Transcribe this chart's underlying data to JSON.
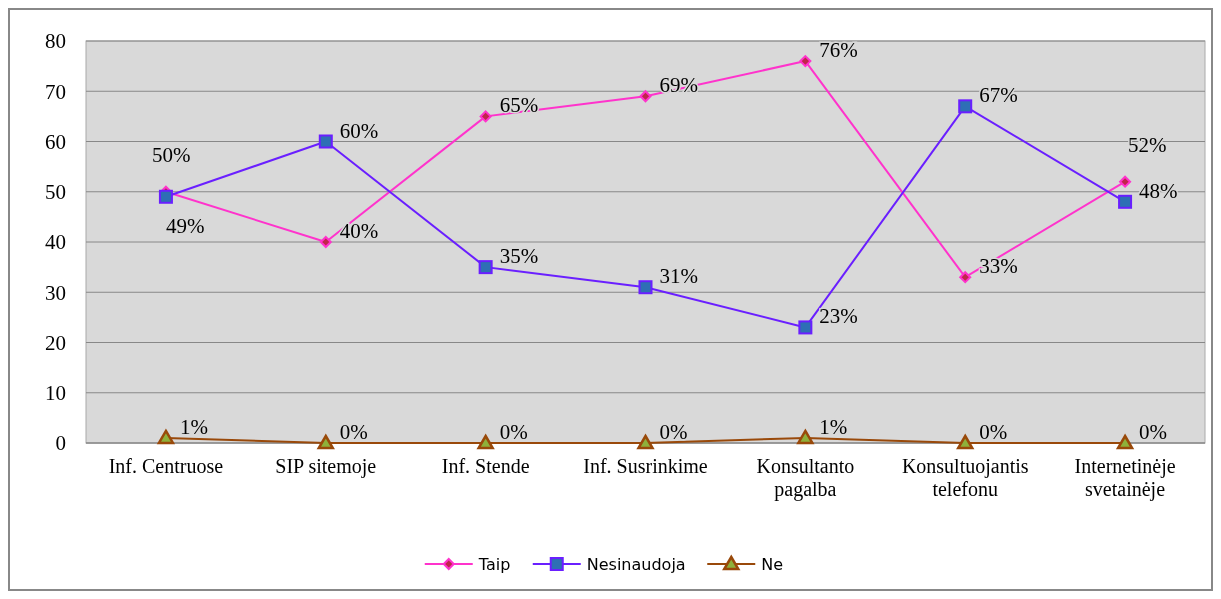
{
  "chart_data": {
    "type": "line",
    "categories": [
      "Inf. Centruose",
      "SIP sitemoje",
      "Inf. Stende",
      "Inf. Susrinkime",
      "Konsultanto pagalba",
      "Konsultuojantis telefonu",
      "Internetinėje svetainėje"
    ],
    "series": [
      {
        "name": "Taip",
        "color": "#ff33cc",
        "marker": "diamond",
        "values": [
          50,
          40,
          65,
          69,
          76,
          33,
          52
        ],
        "value_labels": [
          "50%",
          "40%",
          "65%",
          "69%",
          "76%",
          "33%",
          "52%"
        ]
      },
      {
        "name": "Nesinaudoja",
        "color": "#6a1fff",
        "marker": "square",
        "values": [
          49,
          60,
          35,
          31,
          23,
          67,
          48
        ],
        "value_labels": [
          "49%",
          "60%",
          "35%",
          "31%",
          "23%",
          "67%",
          "48%"
        ]
      },
      {
        "name": "Ne",
        "color": "#99490a",
        "marker": "triangle",
        "values": [
          1,
          0,
          0,
          0,
          1,
          0,
          0
        ],
        "value_labels": [
          "1%",
          "0%",
          "0%",
          "0%",
          "1%",
          "0%",
          "0%"
        ]
      }
    ],
    "ylim": [
      0,
      80
    ],
    "yticks": [
      0,
      10,
      20,
      30,
      40,
      50,
      60,
      70,
      80
    ],
    "grid": "y",
    "legend": "bottom"
  }
}
